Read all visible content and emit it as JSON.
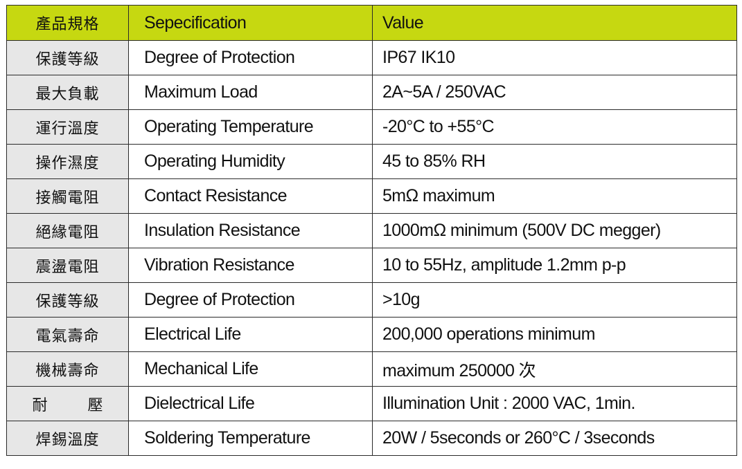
{
  "header": {
    "zh": "產品規格",
    "spec": "Sepecification",
    "value": "Value"
  },
  "rows": [
    {
      "zh": "保護等級",
      "spec": "Degree of Protection",
      "value": "IP67  IK10"
    },
    {
      "zh": "最大負載",
      "spec": "Maximum Load",
      "value": "2A~5A / 250VAC"
    },
    {
      "zh": "運行溫度",
      "spec": "Operating Temperature",
      "value": "-20°C to +55°C"
    },
    {
      "zh": "操作濕度",
      "spec": "Operating Humidity",
      "value": "45 to 85%  RH"
    },
    {
      "zh": "接觸電阻",
      "spec": "Contact Resistance",
      "value": "5mΩ  maximum"
    },
    {
      "zh": "絕緣電阻",
      "spec": "Insulation Resistance",
      "value": "1000mΩ  minimum (500V DC megger)"
    },
    {
      "zh": "震盪電阻",
      "spec": "Vibration Resistance",
      "value": "10 to 55Hz, amplitude 1.2mm p-p"
    },
    {
      "zh": "保護等級",
      "spec": "Degree of Protection",
      "value": ">10g"
    },
    {
      "zh": "電氣壽命",
      "spec": "Electrical Life",
      "value": "200,000 operations minimum"
    },
    {
      "zh": "機械壽命",
      "spec": "Mechanical Life",
      "value": "maximum 250000 次"
    },
    {
      "zh_a": "耐",
      "zh_b": "壓",
      "spec": "Dielectrical Life",
      "value": "Illumination Unit : 2000 VAC, 1min."
    },
    {
      "zh": "焊錫溫度",
      "spec": "Soldering Temperature",
      "value": "20W / 5seconds or 260°C / 3seconds"
    }
  ],
  "colors": {
    "header_bg": "#c6d811",
    "zh_col_bg": "#e7e7e7",
    "border": "#2a2a2a"
  }
}
